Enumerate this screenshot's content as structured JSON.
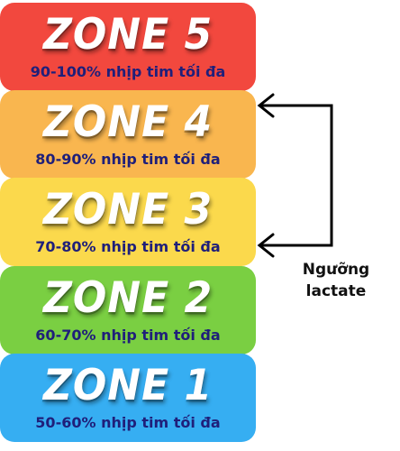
{
  "zones": [
    {
      "title": "ZONE 5",
      "desc": "90-100% nhịp tim tối đa",
      "color": "#f2483e"
    },
    {
      "title": "ZONE 4",
      "desc": "80-90% nhịp tim tối đa",
      "color": "#f9b64f"
    },
    {
      "title": "ZONE 3",
      "desc": "70-80% nhịp tim tối đa",
      "color": "#fbd94c"
    },
    {
      "title": "ZONE 2",
      "desc": "60-70% nhịp tim tối đa",
      "color": "#7acf42"
    },
    {
      "title": "ZONE 1",
      "desc": "50-60% nhịp tim tối đa",
      "color": "#36aef2"
    }
  ],
  "annotation": {
    "line1": "Ngưỡng",
    "line2": "lactate",
    "range": [
      "ZONE 4",
      "ZONE 3"
    ]
  }
}
